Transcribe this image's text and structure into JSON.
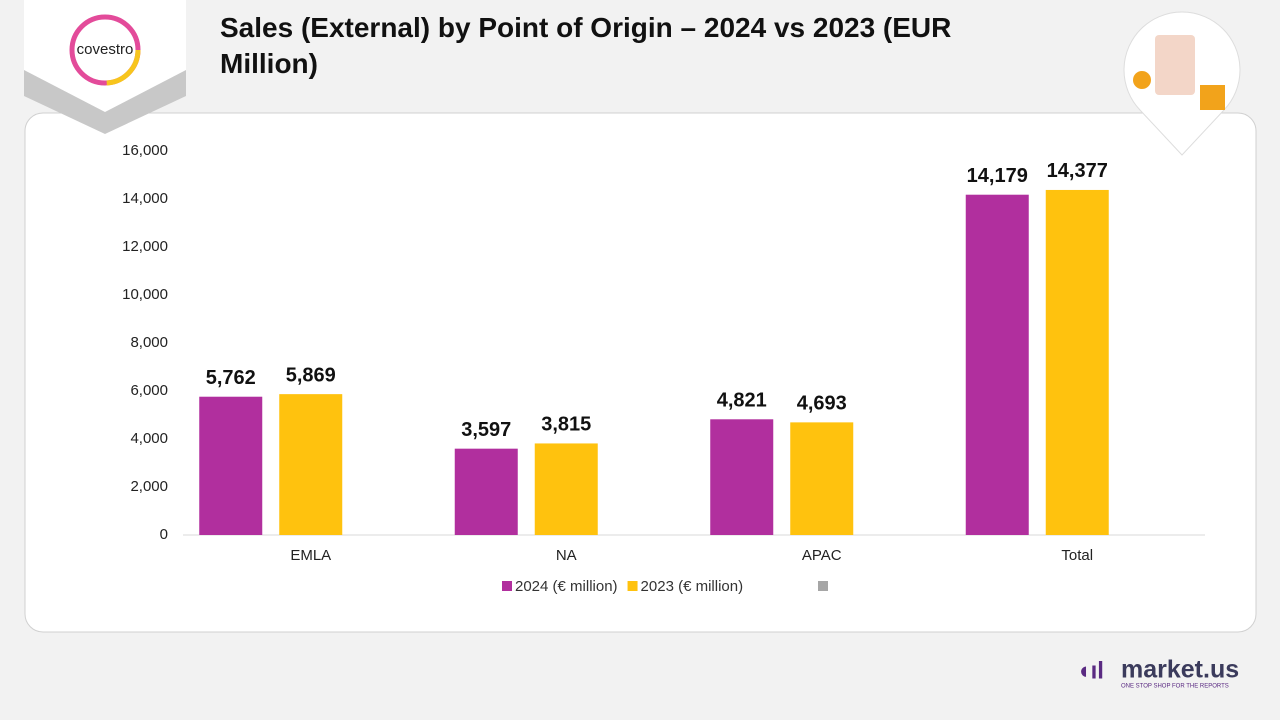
{
  "brand": {
    "company": "covestro",
    "site": "market.us",
    "tagline": "ONE STOP SHOP FOR THE REPORTS"
  },
  "chart_data": {
    "type": "bar",
    "title": "Sales (External) by Point of Origin – 2024 vs 2023 (EUR Million)",
    "categories": [
      "EMLA",
      "NA",
      "APAC",
      "Total"
    ],
    "series": [
      {
        "name": "2024 (€ million)",
        "color": "#b12f9e",
        "values": [
          5762,
          3597,
          4821,
          14179
        ],
        "value_labels": [
          "5,762",
          "3,597",
          "4,821",
          "14,179"
        ]
      },
      {
        "name": "2023 (€ million)",
        "color": "#ffc20e",
        "values": [
          5869,
          3815,
          4693,
          14377
        ],
        "value_labels": [
          "5,869",
          "3,815",
          "4,693",
          "14,377"
        ]
      }
    ],
    "ylim": [
      0,
      16000
    ],
    "yticks": [
      0,
      {
        "value": 2000,
        "label": "2,000"
      },
      {
        "value": 4000,
        "label": "4,000"
      },
      {
        "value": 6000,
        "label": "6,000"
      },
      {
        "value": 8000,
        "label": "8,000"
      },
      {
        "value": 10000,
        "label": "10,000"
      },
      {
        "value": 12000,
        "label": "12,000"
      },
      {
        "value": 14000,
        "label": "14,000"
      },
      {
        "value": 16000,
        "label": "16,000"
      }
    ],
    "grid": false,
    "legend": "bottom"
  }
}
